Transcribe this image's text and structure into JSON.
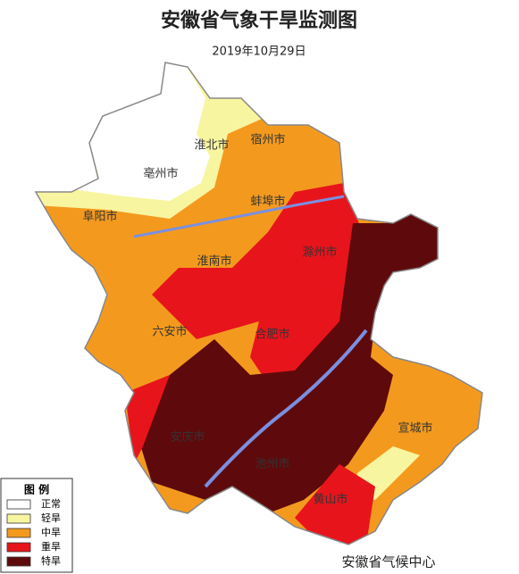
{
  "header": {
    "title": "安徽省气象干旱监测图",
    "date": "2019年10月29日"
  },
  "cities": [
    {
      "label": "淮北市"
    },
    {
      "label": "宿州市"
    },
    {
      "label": "亳州市"
    },
    {
      "label": "蚌埠市"
    },
    {
      "label": "阜阳市"
    },
    {
      "label": "淮南市"
    },
    {
      "label": "滁州市"
    },
    {
      "label": "六安市"
    },
    {
      "label": "合肥市"
    },
    {
      "label": "安庆市"
    },
    {
      "label": "池州市"
    },
    {
      "label": "宣城市"
    },
    {
      "label": "黄山市"
    }
  ],
  "legend": {
    "title": "图 例",
    "items": [
      {
        "label": "正常",
        "color": "#ffffff"
      },
      {
        "label": "轻旱",
        "color": "#f8f5a0"
      },
      {
        "label": "中旱",
        "color": "#f39a1e"
      },
      {
        "label": "重旱",
        "color": "#e8141c"
      },
      {
        "label": "特旱",
        "color": "#5e0a0c"
      }
    ]
  },
  "footer": {
    "credit": "安徽省气候中心"
  }
}
